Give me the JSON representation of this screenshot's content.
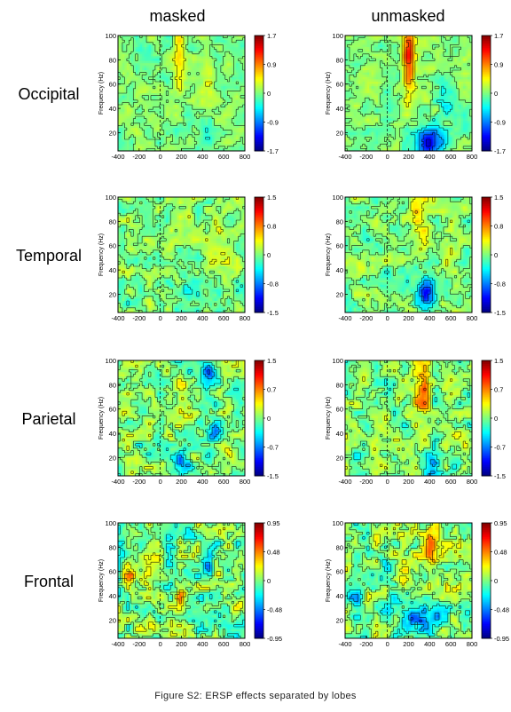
{
  "caption": "Figure S2: ERSP effects separated by lobes",
  "column_titles": [
    "masked",
    "unmasked"
  ],
  "colormap": [
    "#00007f",
    "#0000ff",
    "#007fff",
    "#00ffff",
    "#7fff7f",
    "#ffff00",
    "#ff7f00",
    "#ff0000",
    "#7f0000"
  ],
  "chart_data": {
    "type": "heatmap",
    "title": "",
    "xlabel": "",
    "ylabel": "Frequency (Hz)",
    "x_ticks": [
      "-400",
      "-200",
      "0",
      "200",
      "400",
      "600",
      "800"
    ],
    "x_range": [
      -400,
      800
    ],
    "y_ticks": [
      "20",
      "40",
      "60",
      "80",
      "100"
    ],
    "y_range": [
      5,
      100
    ],
    "rows": [
      {
        "lobe": "Occipital",
        "colorbar_ticks": [
          "1.7",
          "0.9",
          "0",
          "-0.9",
          "-1.7"
        ],
        "color_range": [
          -1.7,
          1.7
        ],
        "panels": [
          {
            "condition": "masked",
            "blobs": [
              {
                "x": 180,
                "y": 88,
                "sx": 40,
                "sy": 14,
                "a": 0.55
              },
              {
                "x": 180,
                "y": 60,
                "sx": 40,
                "sy": 12,
                "a": 0.3
              },
              {
                "x": 450,
                "y": 55,
                "sx": 70,
                "sy": 10,
                "a": 0.2
              },
              {
                "x": 400,
                "y": 20,
                "sx": 60,
                "sy": 10,
                "a": -0.2
              }
            ]
          },
          {
            "condition": "unmasked",
            "blobs": [
              {
                "x": 200,
                "y": 90,
                "sx": 40,
                "sy": 14,
                "a": 0.95
              },
              {
                "x": 200,
                "y": 65,
                "sx": 40,
                "sy": 16,
                "a": 0.6
              },
              {
                "x": 550,
                "y": 45,
                "sx": 60,
                "sy": 10,
                "a": -0.4
              },
              {
                "x": 400,
                "y": 12,
                "sx": 90,
                "sy": 8,
                "a": -1.4
              }
            ]
          }
        ]
      },
      {
        "lobe": "Temporal",
        "colorbar_ticks": [
          "1.5",
          "0.8",
          "0",
          "-0.8",
          "-1.5"
        ],
        "color_range": [
          -1.5,
          1.5
        ],
        "panels": [
          {
            "condition": "masked",
            "blobs": [
              {
                "x": 300,
                "y": 15,
                "sx": 150,
                "sy": 8,
                "a": -0.3
              },
              {
                "x": 600,
                "y": 70,
                "sx": 100,
                "sy": 15,
                "a": 0.15
              }
            ]
          },
          {
            "condition": "unmasked",
            "blobs": [
              {
                "x": 370,
                "y": 20,
                "sx": 60,
                "sy": 10,
                "a": -1.3
              },
              {
                "x": 300,
                "y": 80,
                "sx": 60,
                "sy": 20,
                "a": 0.45
              },
              {
                "x": 600,
                "y": 60,
                "sx": 80,
                "sy": 15,
                "a": 0.2
              }
            ]
          }
        ]
      },
      {
        "lobe": "Parietal",
        "colorbar_ticks": [
          "1.5",
          "0.7",
          "0",
          "-0.7",
          "-1.5"
        ],
        "color_range": [
          -1.5,
          1.5
        ],
        "panels": [
          {
            "condition": "masked",
            "blobs": [
              {
                "x": 450,
                "y": 90,
                "sx": 60,
                "sy": 8,
                "a": -0.7
              },
              {
                "x": 200,
                "y": 70,
                "sx": 40,
                "sy": 8,
                "a": 0.5
              },
              {
                "x": 500,
                "y": 40,
                "sx": 50,
                "sy": 8,
                "a": -0.6
              },
              {
                "x": 200,
                "y": 15,
                "sx": 50,
                "sy": 8,
                "a": -0.8
              }
            ]
          },
          {
            "condition": "unmasked",
            "blobs": [
              {
                "x": 320,
                "y": 75,
                "sx": 60,
                "sy": 15,
                "a": 0.8
              },
              {
                "x": 30,
                "y": 70,
                "sx": 40,
                "sy": 10,
                "a": -0.5
              },
              {
                "x": 420,
                "y": 15,
                "sx": 60,
                "sy": 8,
                "a": -0.9
              },
              {
                "x": 600,
                "y": 55,
                "sx": 50,
                "sy": 10,
                "a": 0.3
              }
            ]
          }
        ]
      },
      {
        "lobe": "Frontal",
        "colorbar_ticks": [
          "0.95",
          "0.48",
          "0",
          "-0.48",
          "-0.95"
        ],
        "color_range": [
          -0.95,
          0.95
        ],
        "panels": [
          {
            "condition": "masked",
            "blobs": [
              {
                "x": -300,
                "y": 60,
                "sx": 40,
                "sy": 10,
                "a": 0.6
              },
              {
                "x": 100,
                "y": 80,
                "sx": 40,
                "sy": 10,
                "a": -0.5
              },
              {
                "x": 450,
                "y": 70,
                "sx": 40,
                "sy": 10,
                "a": -0.6
              },
              {
                "x": 550,
                "y": 30,
                "sx": 50,
                "sy": 10,
                "a": -0.5
              },
              {
                "x": 200,
                "y": 40,
                "sx": 40,
                "sy": 8,
                "a": 0.5
              }
            ]
          },
          {
            "condition": "unmasked",
            "blobs": [
              {
                "x": 400,
                "y": 80,
                "sx": 60,
                "sy": 12,
                "a": 0.9
              },
              {
                "x": 350,
                "y": 20,
                "sx": 120,
                "sy": 10,
                "a": -0.7
              },
              {
                "x": -300,
                "y": 40,
                "sx": 40,
                "sy": 10,
                "a": -0.5
              },
              {
                "x": 150,
                "y": 60,
                "sx": 50,
                "sy": 10,
                "a": 0.4
              }
            ]
          }
        ]
      }
    ]
  }
}
